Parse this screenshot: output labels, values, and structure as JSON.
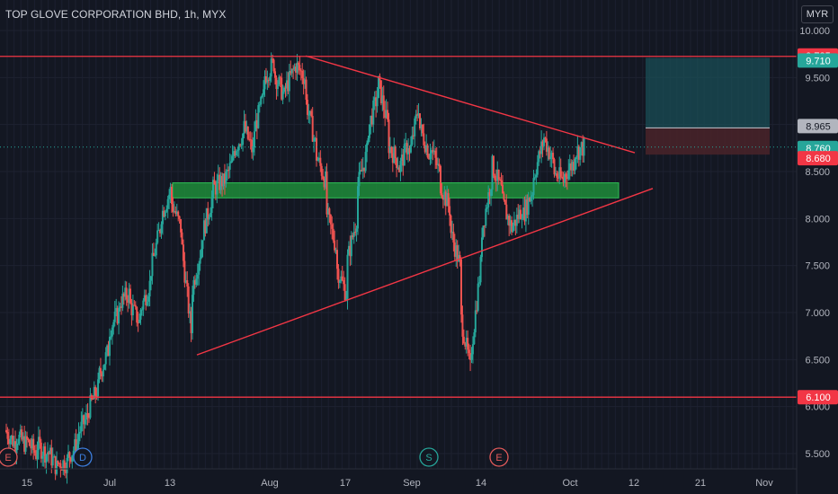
{
  "header": {
    "title": "TOP GLOVE CORPORATION BHD, 1h, MYX",
    "currency": "MYR"
  },
  "colors": {
    "background": "#131722",
    "up": "#26a69a",
    "down": "#ef5350",
    "line": "#f23645",
    "zone": "#1e8c3a",
    "target_zone": "#1a4e55",
    "stop_zone": "#4a2329",
    "axis_text": "#b2b5be"
  },
  "chart_data": {
    "type": "candlestick",
    "title": "TOP GLOVE CORPORATION BHD, 1h, MYX",
    "ylim": [
      5.25,
      10.35
    ],
    "y_ticks": [
      "5.500",
      "6.000",
      "6.500",
      "7.000",
      "7.500",
      "8.000",
      "8.500",
      "9.000",
      "9.500",
      "10.000"
    ],
    "x_ticks": [
      "15",
      "Jul",
      "13",
      "Aug",
      "17",
      "Sep",
      "14",
      "Oct",
      "12",
      "21",
      "Nov"
    ],
    "price_labels": [
      {
        "value": 9.725,
        "text": "9.725",
        "style": "red"
      },
      {
        "value": 9.71,
        "text": "9.710",
        "style": "green"
      },
      {
        "value": 8.965,
        "text": "8.965",
        "style": "gray"
      },
      {
        "value": 8.76,
        "text": "8.760",
        "style": "green"
      },
      {
        "value": 8.68,
        "text": "8.680",
        "style": "red"
      },
      {
        "value": 6.1,
        "text": "6.100",
        "style": "red"
      }
    ],
    "horizontal_lines": [
      9.725,
      6.1
    ],
    "support_zone": {
      "low": 8.22,
      "high": 8.38
    },
    "position": {
      "entry": 8.965,
      "target": 9.71,
      "stop": 8.68
    },
    "trendlines": [
      {
        "from": [
          "Aug 8",
          9.73
        ],
        "to": [
          "Oct 6",
          8.7
        ]
      },
      {
        "from": [
          "Jul 15",
          6.55
        ],
        "to": [
          "Oct 10",
          8.32
        ]
      }
    ],
    "markers": [
      {
        "letter": "E",
        "kind": "earnings"
      },
      {
        "letter": "D",
        "kind": "dividend"
      },
      {
        "letter": "S",
        "kind": "split"
      },
      {
        "letter": "E",
        "kind": "earnings"
      }
    ],
    "price_path": [
      [
        5.75,
        5.6
      ],
      [
        5.7,
        5.6
      ],
      [
        5.65,
        5.5
      ],
      [
        5.6,
        5.5
      ],
      [
        5.55,
        5.35
      ],
      [
        5.4,
        5.4
      ],
      [
        5.45,
        5.6
      ],
      [
        5.7,
        5.9
      ],
      [
        5.95,
        6.2
      ],
      [
        6.3,
        6.6
      ],
      [
        6.8,
        7.0
      ],
      [
        7.1,
        7.2
      ],
      [
        7.1,
        6.9
      ],
      [
        7.0,
        7.3
      ],
      [
        7.4,
        7.9
      ],
      [
        8.0,
        8.3
      ],
      [
        8.2,
        7.9
      ],
      [
        7.8,
        6.8
      ],
      [
        7.2,
        7.7
      ],
      [
        7.8,
        8.2
      ],
      [
        8.3,
        8.4
      ],
      [
        8.35,
        8.6
      ],
      [
        8.7,
        8.9
      ],
      [
        9.0,
        8.7
      ],
      [
        8.9,
        9.3
      ],
      [
        9.5,
        9.65
      ],
      [
        9.55,
        9.3
      ],
      [
        9.35,
        9.6
      ],
      [
        9.65,
        9.5
      ],
      [
        9.3,
        8.8
      ],
      [
        8.7,
        8.4
      ],
      [
        8.1,
        7.7
      ],
      [
        7.5,
        7.2
      ],
      [
        7.5,
        8.0
      ],
      [
        8.3,
        8.7
      ],
      [
        8.9,
        9.3
      ],
      [
        9.5,
        9.0
      ],
      [
        8.8,
        8.6
      ],
      [
        8.5,
        8.8
      ],
      [
        8.6,
        9.2
      ],
      [
        9.0,
        8.7
      ],
      [
        8.8,
        8.5
      ],
      [
        8.4,
        8.1
      ],
      [
        7.9,
        7.5
      ],
      [
        7.0,
        6.4
      ],
      [
        6.5,
        7.5
      ],
      [
        7.8,
        8.4
      ],
      [
        8.6,
        8.3
      ],
      [
        8.2,
        7.9
      ],
      [
        7.9,
        8.1
      ],
      [
        8.0,
        8.3
      ],
      [
        8.4,
        8.8
      ],
      [
        8.9,
        8.6
      ],
      [
        8.5,
        8.4
      ],
      [
        8.45,
        8.6
      ],
      [
        8.7,
        8.76
      ]
    ]
  }
}
